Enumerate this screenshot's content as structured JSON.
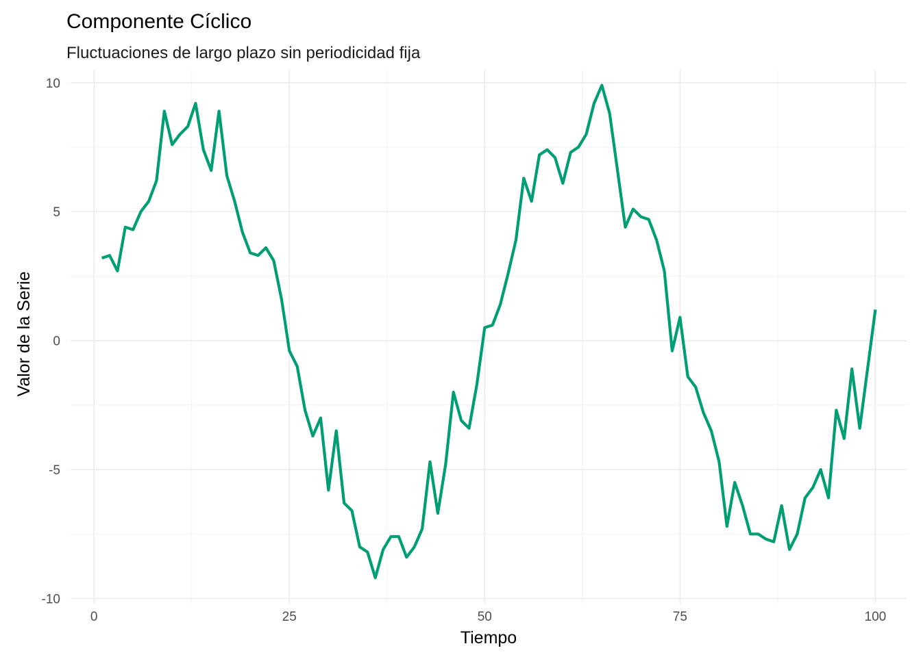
{
  "chart_data": {
    "type": "line",
    "title": "Componente Cíclico",
    "subtitle": "Fluctuaciones de largo plazo sin periodicidad fija",
    "xlabel": "Tiempo",
    "ylabel": "Valor de la Serie",
    "xlim": [
      -3,
      104
    ],
    "ylim": [
      -10.2,
      10.5
    ],
    "x_ticks": [
      0,
      25,
      50,
      75,
      100
    ],
    "x_tick_labels": [
      "0",
      "25",
      "50",
      "75",
      "100"
    ],
    "y_ticks": [
      -10,
      -5,
      0,
      5,
      10
    ],
    "y_tick_labels": [
      "-10",
      "-5",
      "0",
      "5",
      "10"
    ],
    "grid": true,
    "legend": "none",
    "line_color": "#009E73",
    "x": [
      1,
      2,
      3,
      4,
      5,
      6,
      7,
      8,
      9,
      10,
      11,
      12,
      13,
      14,
      15,
      16,
      17,
      18,
      19,
      20,
      21,
      22,
      23,
      24,
      25,
      26,
      27,
      28,
      29,
      30,
      31,
      32,
      33,
      34,
      35,
      36,
      37,
      38,
      39,
      40,
      41,
      42,
      43,
      44,
      45,
      46,
      47,
      48,
      49,
      50,
      51,
      52,
      53,
      54,
      55,
      56,
      57,
      58,
      59,
      60,
      61,
      62,
      63,
      64,
      65,
      66,
      67,
      68,
      69,
      70,
      71,
      72,
      73,
      74,
      75,
      76,
      77,
      78,
      79,
      80,
      81,
      82,
      83,
      84,
      85,
      86,
      87,
      88,
      89,
      90,
      91,
      92,
      93,
      94,
      95,
      96,
      97,
      98,
      99,
      100
    ],
    "y": [
      3.2,
      3.3,
      2.7,
      4.4,
      4.3,
      5.0,
      5.4,
      6.2,
      8.9,
      7.6,
      8.0,
      8.3,
      9.2,
      7.4,
      6.6,
      8.9,
      6.4,
      5.4,
      4.2,
      3.4,
      3.3,
      3.6,
      3.1,
      1.6,
      -0.4,
      -1.0,
      -2.7,
      -3.7,
      -3.0,
      -5.8,
      -3.5,
      -6.3,
      -6.6,
      -8.0,
      -8.2,
      -9.2,
      -8.1,
      -7.6,
      -7.6,
      -8.4,
      -8.0,
      -7.3,
      -4.7,
      -6.7,
      -4.8,
      -2.0,
      -3.1,
      -3.4,
      -1.7,
      0.5,
      0.6,
      1.4,
      2.6,
      3.9,
      6.3,
      5.4,
      7.2,
      7.4,
      7.1,
      6.1,
      7.3,
      7.5,
      8.0,
      9.2,
      9.9,
      8.8,
      6.6,
      4.4,
      5.1,
      4.8,
      4.7,
      3.9,
      2.7,
      -0.4,
      0.9,
      -1.4,
      -1.8,
      -2.8,
      -3.5,
      -4.7,
      -7.2,
      -5.5,
      -6.4,
      -7.5,
      -7.5,
      -7.7,
      -7.8,
      -6.4,
      -8.1,
      -7.5,
      -6.1,
      -5.7,
      -5.0,
      -6.1,
      -2.7,
      -3.8,
      -1.1,
      -3.4,
      -1.1,
      1.2
    ]
  }
}
